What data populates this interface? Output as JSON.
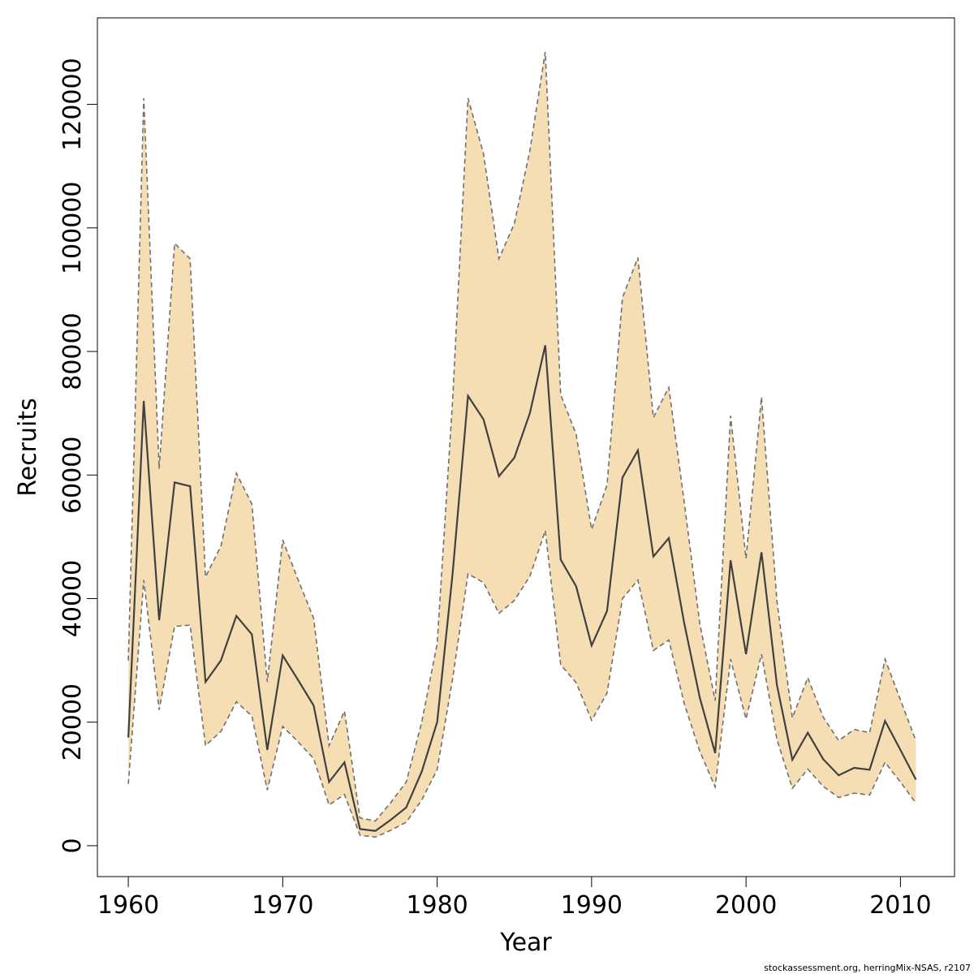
{
  "chart_data": {
    "type": "line",
    "xlabel": "Year",
    "ylabel": "Recruits",
    "xlim": [
      1958,
      2013.5
    ],
    "ylim": [
      -5000,
      134000
    ],
    "xticks": [
      1960,
      1970,
      1980,
      1990,
      2000,
      2010
    ],
    "yticks": [
      0,
      20000,
      40000,
      60000,
      80000,
      100000,
      120000
    ],
    "grid": false,
    "band_color": "#f5deb3",
    "line_color": "#404040",
    "bound_color": "#707070",
    "x": [
      1960,
      1961,
      1962,
      1963,
      1964,
      1965,
      1966,
      1967,
      1968,
      1969,
      1970,
      1971,
      1972,
      1973,
      1974,
      1975,
      1976,
      1977,
      1978,
      1979,
      1980,
      1981,
      1982,
      1983,
      1984,
      1985,
      1986,
      1987,
      1988,
      1989,
      1990,
      1991,
      1992,
      1993,
      1994,
      1995,
      1996,
      1997,
      1998,
      1999,
      2000,
      2001,
      2002,
      2003,
      2004,
      2005,
      2006,
      2007,
      2008,
      2009,
      2010,
      2011
    ],
    "series": [
      {
        "values": [
          17500,
          72000,
          36500,
          58800,
          58200,
          26500,
          30000,
          37200,
          34200,
          15500,
          30800,
          26800,
          22700,
          10300,
          13500,
          2700,
          2400,
          4200,
          6200,
          12000,
          20000,
          44000,
          72800,
          69000,
          59800,
          62800,
          70000,
          81000,
          46300,
          42000,
          32400,
          38000,
          59600,
          64000,
          46800,
          49800,
          36000,
          24000,
          15000,
          46200,
          31000,
          47500,
          26000,
          13900,
          18300,
          14000,
          11400,
          12600,
          12300,
          20200,
          15500,
          10700
        ]
      },
      {
        "values": [
          10000,
          43000,
          22000,
          35500,
          35700,
          16200,
          18500,
          23300,
          21000,
          9000,
          19300,
          16800,
          14100,
          6600,
          8300,
          1700,
          1400,
          2500,
          3800,
          7400,
          12300,
          27000,
          44000,
          42600,
          37600,
          39700,
          43600,
          51000,
          29300,
          26400,
          20300,
          24700,
          40000,
          43000,
          31600,
          33300,
          23000,
          15300,
          9500,
          30200,
          20500,
          31000,
          17200,
          9300,
          12400,
          9600,
          7800,
          8500,
          8200,
          13500,
          10300,
          6900
        ]
      },
      {
        "values": [
          30000,
          121000,
          61000,
          97500,
          95000,
          43500,
          48500,
          60300,
          55300,
          26500,
          49500,
          43000,
          36800,
          16200,
          21800,
          4500,
          4000,
          7000,
          10300,
          20000,
          32700,
          72000,
          121000,
          112000,
          95000,
          100700,
          112500,
          128500,
          73000,
          66600,
          51200,
          58400,
          88700,
          95200,
          69300,
          74200,
          55600,
          36000,
          23500,
          69600,
          46500,
          72600,
          39600,
          20700,
          27200,
          20800,
          17000,
          18800,
          18300,
          30200,
          23600,
          17000
        ]
      }
    ]
  },
  "footnote": "stockassessment.org, herringMix-NSAS, r2107"
}
